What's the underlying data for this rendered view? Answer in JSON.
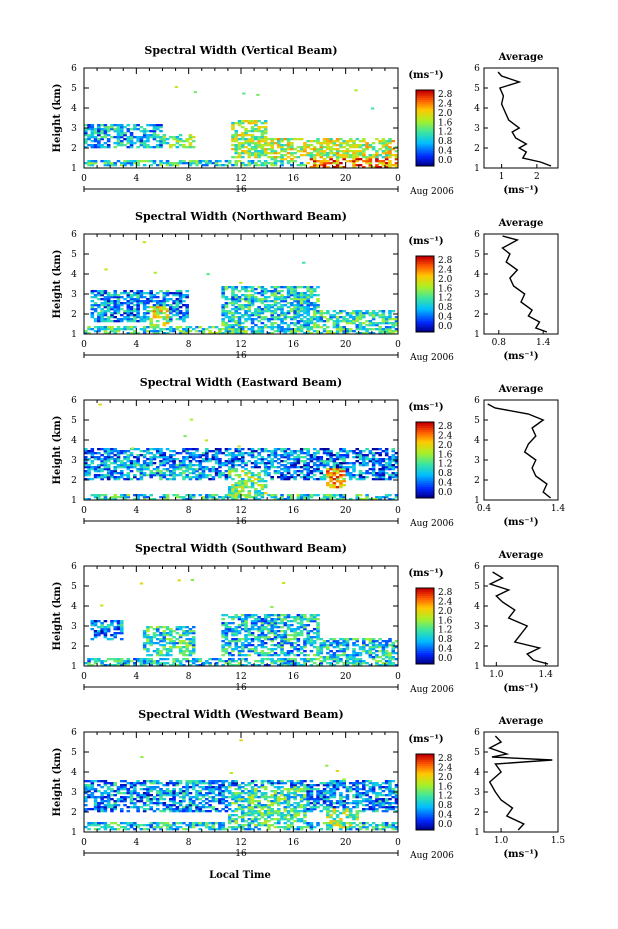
{
  "figure": {
    "xlabel": "Local Time",
    "date_label": "16",
    "month_label": "Aug 2006",
    "colorbar_unit": "(ms⁻¹)",
    "avg_title": "Average",
    "avg_unit": "(ms⁻¹)"
  },
  "chart_data": [
    {
      "type": "heatmap",
      "title": "Spectral Width (Vertical Beam)",
      "ylabel": "Height (km)",
      "xlabel": "Local Time",
      "x_ticks": [
        "0",
        "4",
        "8",
        "12",
        "16",
        "20",
        "0"
      ],
      "y_ticks": [
        "1",
        "2",
        "3",
        "4",
        "5",
        "6"
      ],
      "xlim": [
        0,
        24
      ],
      "ylim": [
        1,
        6
      ],
      "colorbar": {
        "unit": "(ms⁻¹)",
        "ticks": [
          "0.0",
          "0.4",
          "0.8",
          "1.2",
          "1.6",
          "2.0",
          "2.4",
          "2.8"
        ],
        "range": [
          0,
          3.0
        ]
      },
      "regions": [
        {
          "x0": 0,
          "x1": 24,
          "y0": 1.1,
          "y1": 1.4,
          "value": 1.2
        },
        {
          "x0": 0,
          "x1": 6,
          "y0": 2.0,
          "y1": 3.2,
          "value": 0.9
        },
        {
          "x0": 6,
          "x1": 8.5,
          "y0": 2.0,
          "y1": 2.7,
          "value": 1.4
        },
        {
          "x0": 11.2,
          "x1": 14,
          "y0": 1.5,
          "y1": 3.4,
          "value": 1.7
        },
        {
          "x0": 14,
          "x1": 24,
          "y0": 1.4,
          "y1": 2.5,
          "value": 1.8
        },
        {
          "x0": 17,
          "x1": 24,
          "y0": 1.0,
          "y1": 1.5,
          "value": 2.5
        }
      ],
      "average_profile": {
        "title": "Average",
        "xlabel": "(ms⁻¹)",
        "x_ticks": [
          "1",
          "2"
        ],
        "xlim": [
          0.5,
          2.6
        ],
        "ylim": [
          1,
          6
        ],
        "height": [
          1.1,
          1.3,
          1.5,
          1.8,
          2.0,
          2.2,
          2.5,
          2.8,
          3.0,
          3.4,
          3.8,
          4.2,
          4.6,
          5.0,
          5.3,
          5.6,
          5.8
        ],
        "width": [
          2.4,
          2.1,
          1.6,
          1.7,
          1.5,
          1.7,
          1.4,
          1.3,
          1.5,
          1.2,
          1.1,
          1.0,
          1.05,
          0.95,
          1.5,
          1.0,
          0.9
        ]
      }
    },
    {
      "type": "heatmap",
      "title": "Spectral Width (Northward Beam)",
      "ylabel": "Height (km)",
      "xlabel": "Local Time",
      "x_ticks": [
        "0",
        "4",
        "8",
        "12",
        "16",
        "20",
        "0"
      ],
      "y_ticks": [
        "1",
        "2",
        "3",
        "4",
        "5",
        "6"
      ],
      "xlim": [
        0,
        24
      ],
      "ylim": [
        1,
        6
      ],
      "colorbar": {
        "unit": "(ms⁻¹)",
        "ticks": [
          "0.0",
          "0.4",
          "0.8",
          "1.2",
          "1.6",
          "2.0",
          "2.4",
          "2.8"
        ],
        "range": [
          0,
          3.0
        ]
      },
      "regions": [
        {
          "x0": 0,
          "x1": 24,
          "y0": 1.0,
          "y1": 1.4,
          "value": 1.3
        },
        {
          "x0": 0.5,
          "x1": 8,
          "y0": 1.6,
          "y1": 3.2,
          "value": 0.8
        },
        {
          "x0": 5,
          "x1": 6.5,
          "y0": 1.3,
          "y1": 2.4,
          "value": 1.9
        },
        {
          "x0": 10.5,
          "x1": 18,
          "y0": 1.3,
          "y1": 3.4,
          "value": 1.1
        },
        {
          "x0": 17,
          "x1": 24,
          "y0": 1.2,
          "y1": 2.2,
          "value": 1.2
        }
      ],
      "average_profile": {
        "title": "Average",
        "xlabel": "(ms⁻¹)",
        "x_ticks": [
          "0.8",
          "1.4"
        ],
        "xlim": [
          0.6,
          1.6
        ],
        "ylim": [
          1,
          6
        ],
        "height": [
          1.1,
          1.3,
          1.6,
          1.9,
          2.2,
          2.6,
          3.0,
          3.4,
          3.8,
          4.2,
          4.6,
          5.0,
          5.3,
          5.7,
          5.9
        ],
        "width": [
          1.45,
          1.3,
          1.35,
          1.2,
          1.25,
          1.1,
          1.15,
          1.0,
          0.95,
          1.05,
          0.9,
          0.95,
          0.85,
          1.05,
          0.85
        ]
      }
    },
    {
      "type": "heatmap",
      "title": "Spectral Width (Eastward Beam)",
      "ylabel": "Height (km)",
      "xlabel": "Local Time",
      "x_ticks": [
        "0",
        "4",
        "8",
        "12",
        "16",
        "20",
        "0"
      ],
      "y_ticks": [
        "1",
        "2",
        "3",
        "4",
        "5",
        "6"
      ],
      "xlim": [
        0,
        24
      ],
      "ylim": [
        1,
        6
      ],
      "colorbar": {
        "unit": "(ms⁻¹)",
        "ticks": [
          "0.0",
          "0.4",
          "0.8",
          "1.2",
          "1.6",
          "2.0",
          "2.4",
          "2.8"
        ],
        "range": [
          0,
          3.0
        ]
      },
      "regions": [
        {
          "x0": 0,
          "x1": 24,
          "y0": 1.0,
          "y1": 1.3,
          "value": 1.2
        },
        {
          "x0": 0,
          "x1": 24,
          "y0": 2.0,
          "y1": 3.6,
          "value": 0.7
        },
        {
          "x0": 4,
          "x1": 9,
          "y0": 2.0,
          "y1": 2.8,
          "value": 1.0
        },
        {
          "x0": 11,
          "x1": 14,
          "y0": 1.2,
          "y1": 2.6,
          "value": 1.5
        },
        {
          "x0": 18.5,
          "x1": 20,
          "y0": 1.6,
          "y1": 2.6,
          "value": 2.2
        }
      ],
      "average_profile": {
        "title": "Average",
        "xlabel": "(ms⁻¹)",
        "x_ticks": [
          "0.4",
          "1.4"
        ],
        "xlim": [
          0.4,
          1.4
        ],
        "ylim": [
          1,
          6
        ],
        "height": [
          1.1,
          1.4,
          1.8,
          2.2,
          2.6,
          3.0,
          3.4,
          3.8,
          4.2,
          4.6,
          5.0,
          5.3,
          5.6,
          5.8
        ],
        "width": [
          1.3,
          1.2,
          1.25,
          1.1,
          1.05,
          1.1,
          0.95,
          1.0,
          1.1,
          1.05,
          1.2,
          1.0,
          0.55,
          0.45
        ]
      }
    },
    {
      "type": "heatmap",
      "title": "Spectral Width (Southward Beam)",
      "ylabel": "Height (km)",
      "xlabel": "Local Time",
      "x_ticks": [
        "0",
        "4",
        "8",
        "12",
        "16",
        "20",
        "0"
      ],
      "y_ticks": [
        "1",
        "2",
        "3",
        "4",
        "5",
        "6"
      ],
      "xlim": [
        0,
        24
      ],
      "ylim": [
        1,
        6
      ],
      "colorbar": {
        "unit": "(ms⁻¹)",
        "ticks": [
          "0.0",
          "0.4",
          "0.8",
          "1.2",
          "1.6",
          "2.0",
          "2.4",
          "2.8"
        ],
        "range": [
          0,
          3.0
        ]
      },
      "regions": [
        {
          "x0": 0,
          "x1": 24,
          "y0": 1.0,
          "y1": 1.4,
          "value": 1.1
        },
        {
          "x0": 0.5,
          "x1": 3,
          "y0": 2.3,
          "y1": 3.3,
          "value": 0.8
        },
        {
          "x0": 4.5,
          "x1": 8.5,
          "y0": 1.5,
          "y1": 3.0,
          "value": 1.2
        },
        {
          "x0": 10.5,
          "x1": 18,
          "y0": 1.5,
          "y1": 3.6,
          "value": 1.0
        },
        {
          "x0": 17.5,
          "x1": 24,
          "y0": 1.3,
          "y1": 2.4,
          "value": 1.1
        }
      ],
      "average_profile": {
        "title": "Average",
        "xlabel": "(ms⁻¹)",
        "x_ticks": [
          "1.0",
          "1.4"
        ],
        "xlim": [
          0.9,
          1.5
        ],
        "ylim": [
          1,
          6
        ],
        "height": [
          1.1,
          1.3,
          1.6,
          1.9,
          2.2,
          2.6,
          3.0,
          3.4,
          3.8,
          4.2,
          4.5,
          4.8,
          5.1,
          5.4,
          5.7
        ],
        "width": [
          1.42,
          1.3,
          1.25,
          1.35,
          1.15,
          1.2,
          1.25,
          1.1,
          1.15,
          1.05,
          1.0,
          1.1,
          0.95,
          1.05,
          0.97
        ]
      }
    },
    {
      "type": "heatmap",
      "title": "Spectral Width (Westward Beam)",
      "ylabel": "Height (km)",
      "xlabel": "Local Time",
      "x_ticks": [
        "0",
        "4",
        "8",
        "12",
        "16",
        "20",
        "0"
      ],
      "y_ticks": [
        "1",
        "2",
        "3",
        "4",
        "5",
        "6"
      ],
      "xlim": [
        0,
        24
      ],
      "ylim": [
        1,
        6
      ],
      "colorbar": {
        "unit": "(ms⁻¹)",
        "ticks": [
          "0.0",
          "0.4",
          "0.8",
          "1.2",
          "1.6",
          "2.0",
          "2.4",
          "2.8"
        ],
        "range": [
          0,
          3.0
        ]
      },
      "regions": [
        {
          "x0": 0,
          "x1": 24,
          "y0": 1.1,
          "y1": 1.5,
          "value": 1.1
        },
        {
          "x0": 0,
          "x1": 24,
          "y0": 2.0,
          "y1": 3.6,
          "value": 0.8
        },
        {
          "x0": 11,
          "x1": 17,
          "y0": 1.2,
          "y1": 3.3,
          "value": 1.3
        },
        {
          "x0": 18.5,
          "x1": 21,
          "y0": 1.2,
          "y1": 2.2,
          "value": 1.6
        }
      ],
      "average_profile": {
        "title": "Average",
        "xlabel": "(ms⁻¹)",
        "x_ticks": [
          "1.0",
          "1.5"
        ],
        "xlim": [
          0.85,
          1.5
        ],
        "ylim": [
          1,
          6
        ],
        "height": [
          1.1,
          1.4,
          1.8,
          2.2,
          2.6,
          3.0,
          3.5,
          4.0,
          4.4,
          4.6,
          4.75,
          4.9,
          5.2,
          5.5,
          5.8
        ],
        "width": [
          1.15,
          1.2,
          1.05,
          1.1,
          1.0,
          0.95,
          0.9,
          1.0,
          0.95,
          1.45,
          0.92,
          1.05,
          0.9,
          1.0,
          0.95
        ]
      }
    }
  ]
}
